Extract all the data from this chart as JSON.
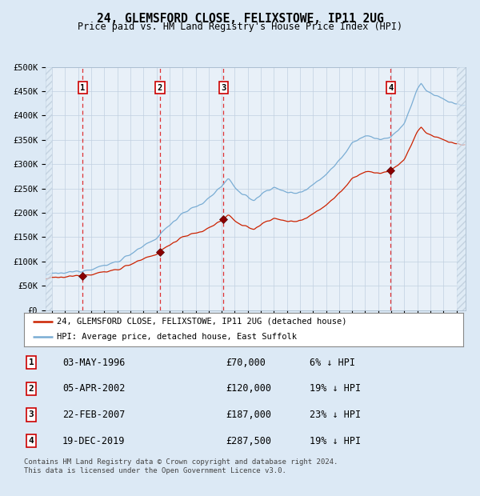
{
  "title": "24, GLEMSFORD CLOSE, FELIXSTOWE, IP11 2UG",
  "subtitle": "Price paid vs. HM Land Registry's House Price Index (HPI)",
  "background_color": "#dce9f5",
  "plot_bg_color": "#e8f0f8",
  "hpi_color": "#7aadd4",
  "price_color": "#cc2200",
  "marker_color": "#8b0000",
  "transactions": [
    {
      "num": 1,
      "price": 70000,
      "x_year": 1996.336
    },
    {
      "num": 2,
      "price": 120000,
      "x_year": 2002.261
    },
    {
      "num": 3,
      "price": 187000,
      "x_year": 2007.144
    },
    {
      "num": 4,
      "price": 287500,
      "x_year": 2019.964
    }
  ],
  "ylim": [
    0,
    500000
  ],
  "yticks": [
    0,
    50000,
    100000,
    150000,
    200000,
    250000,
    300000,
    350000,
    400000,
    450000,
    500000
  ],
  "xlim_start": 1993.5,
  "xlim_end": 2025.7,
  "xticks": [
    1994,
    1995,
    1996,
    1997,
    1998,
    1999,
    2000,
    2001,
    2002,
    2003,
    2004,
    2005,
    2006,
    2007,
    2008,
    2009,
    2010,
    2011,
    2012,
    2013,
    2014,
    2015,
    2016,
    2017,
    2018,
    2019,
    2020,
    2021,
    2022,
    2023,
    2024,
    2025
  ],
  "legend_label_red": "24, GLEMSFORD CLOSE, FELIXSTOWE, IP11 2UG (detached house)",
  "legend_label_blue": "HPI: Average price, detached house, East Suffolk",
  "footer": "Contains HM Land Registry data © Crown copyright and database right 2024.\nThis data is licensed under the Open Government Licence v3.0.",
  "table_rows": [
    {
      "num": 1,
      "date": "03-MAY-1996",
      "price": "£70,000",
      "pct": "6% ↓ HPI"
    },
    {
      "num": 2,
      "date": "05-APR-2002",
      "price": "£120,000",
      "pct": "19% ↓ HPI"
    },
    {
      "num": 3,
      "date": "22-FEB-2007",
      "price": "£187,000",
      "pct": "23% ↓ HPI"
    },
    {
      "num": 4,
      "date": "19-DEC-2019",
      "price": "£287,500",
      "pct": "19% ↓ HPI"
    }
  ],
  "hpi_anchors": [
    [
      1993.5,
      72000
    ],
    [
      1994.0,
      74000
    ],
    [
      1995.0,
      76000
    ],
    [
      1996.0,
      80000
    ],
    [
      1997.0,
      85000
    ],
    [
      1998.0,
      91000
    ],
    [
      1999.0,
      100000
    ],
    [
      2000.0,
      115000
    ],
    [
      2001.0,
      130000
    ],
    [
      2002.0,
      148000
    ],
    [
      2003.0,
      175000
    ],
    [
      2004.0,
      200000
    ],
    [
      2005.5,
      218000
    ],
    [
      2007.0,
      255000
    ],
    [
      2007.5,
      268000
    ],
    [
      2008.5,
      240000
    ],
    [
      2009.5,
      225000
    ],
    [
      2010.5,
      248000
    ],
    [
      2011.0,
      252000
    ],
    [
      2011.5,
      246000
    ],
    [
      2012.5,
      240000
    ],
    [
      2013.5,
      248000
    ],
    [
      2014.5,
      268000
    ],
    [
      2015.5,
      292000
    ],
    [
      2016.5,
      325000
    ],
    [
      2017.0,
      345000
    ],
    [
      2017.5,
      352000
    ],
    [
      2018.0,
      358000
    ],
    [
      2018.5,
      355000
    ],
    [
      2019.0,
      352000
    ],
    [
      2019.5,
      352000
    ],
    [
      2020.0,
      355000
    ],
    [
      2020.5,
      368000
    ],
    [
      2021.0,
      385000
    ],
    [
      2021.5,
      418000
    ],
    [
      2022.0,
      455000
    ],
    [
      2022.3,
      465000
    ],
    [
      2022.7,
      452000
    ],
    [
      2023.0,
      445000
    ],
    [
      2023.5,
      440000
    ],
    [
      2024.0,
      435000
    ],
    [
      2024.5,
      428000
    ],
    [
      2025.5,
      420000
    ]
  ]
}
